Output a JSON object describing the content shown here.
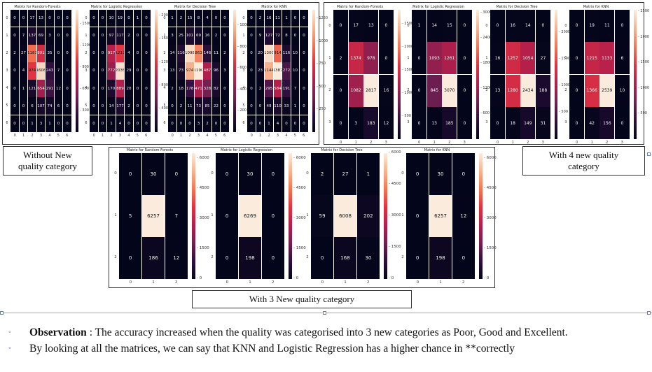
{
  "groups": [
    {
      "caption": "Without New quality category",
      "size": 7,
      "ticks": [
        "0",
        "1",
        "2",
        "3",
        "4",
        "5",
        "6"
      ],
      "matrices": [
        {
          "title": "Matrix for Random-Forests",
          "max": 1700,
          "cbar_ticks": [
            300,
            600,
            900,
            1200,
            1500
          ],
          "values": [
            [
              0,
              0,
              17,
              13,
              0,
              0,
              0
            ],
            [
              0,
              7,
              137,
              69,
              3,
              0,
              0
            ],
            [
              2,
              27,
              1183,
              891,
              35,
              0,
              0
            ],
            [
              0,
              4,
              974,
              1608,
              243,
              7,
              0
            ],
            [
              0,
              1,
              121,
              654,
              291,
              12,
              0
            ],
            [
              0,
              0,
              6,
              107,
              74,
              6,
              0
            ],
            [
              0,
              0,
              1,
              3,
              1,
              0,
              0
            ]
          ]
        },
        {
          "title": "Matrix for Logistic Regression",
          "max": 2100,
          "cbar_ticks": [
            400,
            800,
            1200,
            1600,
            2000
          ],
          "values": [
            [
              0,
              0,
              10,
              19,
              0,
              1,
              0
            ],
            [
              0,
              0,
              97,
              117,
              2,
              0,
              0
            ],
            [
              0,
              0,
              917,
              1217,
              4,
              0,
              0
            ],
            [
              0,
              0,
              772,
              2035,
              29,
              0,
              0
            ],
            [
              0,
              0,
              170,
              889,
              20,
              0,
              0
            ],
            [
              0,
              0,
              14,
              177,
              2,
              0,
              0
            ],
            [
              0,
              0,
              1,
              4,
              0,
              0,
              0
            ]
          ]
        },
        {
          "title": "Matrix for Decision Tree",
          "max": 1150,
          "cbar_ticks": [
            200,
            400,
            600,
            800,
            1000
          ],
          "values": [
            [
              1,
              2,
              15,
              8,
              4,
              0,
              0
            ],
            [
              3,
              25,
              101,
              69,
              16,
              2,
              0
            ],
            [
              14,
              116,
              1098,
              863,
              146,
              11,
              2
            ],
            [
              13,
              73,
              974,
              1190,
              487,
              96,
              3
            ],
            [
              2,
              18,
              178,
              471,
              328,
              82,
              0
            ],
            [
              0,
              2,
              11,
              73,
              85,
              22,
              0
            ],
            [
              0,
              0,
              0,
              3,
              2,
              0,
              0
            ]
          ]
        },
        {
          "title": "Matrix for KNN",
          "max": 1350,
          "cbar_ticks": [
            250,
            500,
            750,
            1000,
            1250
          ],
          "values": [
            [
              0,
              2,
              16,
              11,
              1,
              0,
              0
            ],
            [
              0,
              9,
              127,
              72,
              8,
              0,
              0
            ],
            [
              0,
              20,
              1300,
              914,
              116,
              10,
              0
            ],
            [
              0,
              23,
              1144,
              1387,
              272,
              10,
              0
            ],
            [
              0,
              2,
              295,
              584,
              191,
              7,
              0
            ],
            [
              0,
              0,
              49,
              110,
              33,
              1,
              0
            ],
            [
              0,
              0,
              1,
              4,
              0,
              0,
              0
            ]
          ]
        }
      ]
    },
    {
      "caption": "With 4 new quality category",
      "size": 4,
      "ticks": [
        "0",
        "1",
        "2",
        "3"
      ],
      "matrices": [
        {
          "title": "Matrix for Random-Forests",
          "max": 2817,
          "cbar_ticks": [
            500,
            1000,
            1500,
            2000,
            2500
          ],
          "values": [
            [
              0,
              17,
              13,
              0
            ],
            [
              2,
              1374,
              978,
              0
            ],
            [
              0,
              1082,
              2817,
              16
            ],
            [
              0,
              3,
              183,
              12
            ]
          ]
        },
        {
          "title": "Matrix for Logistic Regression",
          "max": 3070,
          "cbar_ticks": [
            600,
            1200,
            1800,
            2400,
            3000
          ],
          "values": [
            [
              1,
              14,
              15,
              0
            ],
            [
              0,
              1093,
              1261,
              0
            ],
            [
              0,
              845,
              3070,
              0
            ],
            [
              0,
              13,
              185,
              0
            ]
          ]
        },
        {
          "title": "Matrix for Decision Tree",
          "max": 2434,
          "cbar_ticks": [
            500,
            1000,
            1500,
            2000
          ],
          "values": [
            [
              0,
              16,
              14,
              0
            ],
            [
              16,
              1257,
              1054,
              27
            ],
            [
              13,
              1280,
              2434,
              188
            ],
            [
              0,
              18,
              149,
              31
            ]
          ]
        },
        {
          "title": "Matrix for KNN",
          "max": 2539,
          "cbar_ticks": [
            500,
            1000,
            1500,
            2000,
            2500
          ],
          "values": [
            [
              0,
              19,
              11,
              0
            ],
            [
              0,
              1215,
              1133,
              6
            ],
            [
              0,
              1366,
              2539,
              10
            ],
            [
              0,
              42,
              156,
              0
            ]
          ]
        }
      ]
    },
    {
      "caption": "With 3 New quality category",
      "size": 3,
      "ticks": [
        "0",
        "1",
        "2"
      ],
      "matrices": [
        {
          "title": "Matrix for Random-Forests",
          "max": 6257,
          "cbar_ticks": [
            0,
            1500,
            3000,
            4500,
            6000
          ],
          "values": [
            [
              0,
              30,
              0
            ],
            [
              5,
              6257,
              7
            ],
            [
              0,
              186,
              12
            ]
          ]
        },
        {
          "title": "Matrix for Logistic Regression",
          "max": 6269,
          "cbar_ticks": [
            0,
            1500,
            3000,
            4500,
            6000
          ],
          "values": [
            [
              0,
              30,
              0
            ],
            [
              0,
              6269,
              0
            ],
            [
              0,
              198,
              0
            ]
          ]
        },
        {
          "title": "Matrix for Decision Tree",
          "max": 6008,
          "cbar_ticks": [
            0,
            1500,
            3000,
            4500,
            6000
          ],
          "values": [
            [
              2,
              27,
              1
            ],
            [
              59,
              6008,
              202
            ],
            [
              0,
              168,
              30
            ]
          ]
        },
        {
          "title": "Matrix for KNN",
          "max": 6257,
          "cbar_ticks": [
            0,
            1500,
            3000,
            4500,
            6000
          ],
          "values": [
            [
              0,
              30,
              0
            ],
            [
              0,
              6257,
              12
            ],
            [
              0,
              198,
              0
            ]
          ]
        }
      ]
    }
  ],
  "notes": {
    "observation_label": "Observation",
    "observation_text": " : The accuracy increased when the quality was categorised into 3 new categories as Poor, Good and Excellent.",
    "matrices_text": "By looking at all the matrices, we can say that KNN and Logistic Regression has a higher chance in **correctly"
  }
}
